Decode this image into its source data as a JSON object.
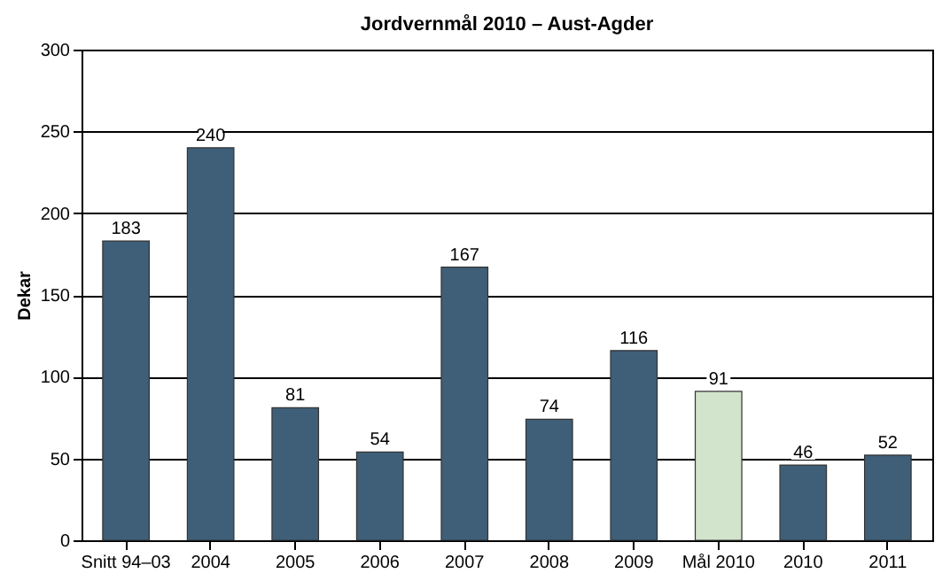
{
  "chart_data": {
    "type": "bar",
    "title": "Jordvernmål 2010 – Aust-Agder",
    "ylabel": "Dekar",
    "categories": [
      "Snitt 94–03",
      "2004",
      "2005",
      "2006",
      "2007",
      "2008",
      "2009",
      "Mål 2010",
      "2010",
      "2011"
    ],
    "values": [
      183,
      240,
      81,
      54,
      167,
      74,
      116,
      91,
      46,
      52
    ],
    "colors": [
      "#3f5f78",
      "#3f5f78",
      "#3f5f78",
      "#3f5f78",
      "#3f5f78",
      "#3f5f78",
      "#3f5f78",
      "#d3e4cc",
      "#3f5f78",
      "#3f5f78"
    ],
    "ylim": [
      0,
      300
    ],
    "yticks": [
      0,
      50,
      100,
      150,
      200,
      250,
      300
    ],
    "grid": "y",
    "data_labels": true
  }
}
